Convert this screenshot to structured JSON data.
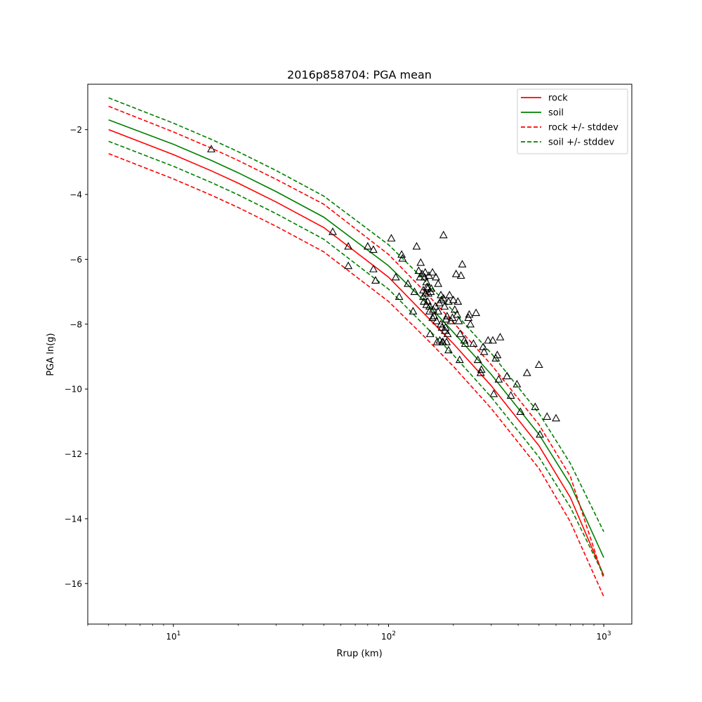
{
  "chart_data": {
    "type": "line",
    "title": "2016p858704: PGA mean",
    "xlabel": "Rrup (km)",
    "ylabel": "PGA ln(g)",
    "x_scale": "log",
    "xlim": [
      4.0,
      1350
    ],
    "ylim": [
      -17.25,
      -0.6
    ],
    "xticks": [
      {
        "value": 10,
        "base": "10",
        "exp": "1"
      },
      {
        "value": 100,
        "base": "10",
        "exp": "2"
      },
      {
        "value": 1000,
        "base": "10",
        "exp": "3"
      }
    ],
    "yticks": [
      {
        "value": -2,
        "label": "−2"
      },
      {
        "value": -4,
        "label": "−4"
      },
      {
        "value": -6,
        "label": "−6"
      },
      {
        "value": -8,
        "label": "−8"
      },
      {
        "value": -10,
        "label": "−10"
      },
      {
        "value": -12,
        "label": "−12"
      },
      {
        "value": -14,
        "label": "−14"
      },
      {
        "value": -16,
        "label": "−16"
      }
    ],
    "grid": false,
    "legend_position": "top-right",
    "legend": [
      {
        "label": "rock",
        "color": "#ff0000",
        "dashed": false
      },
      {
        "label": "soil",
        "color": "#008000",
        "dashed": false
      },
      {
        "label": "rock +/- stddev",
        "color": "#ff0000",
        "dashed": true
      },
      {
        "label": "soil +/- stddev",
        "color": "#008000",
        "dashed": true
      }
    ],
    "curve_x": [
      5,
      10,
      15,
      20,
      30,
      50,
      100,
      150,
      200,
      300,
      500,
      700,
      1000
    ],
    "series": [
      {
        "name": "rock",
        "color": "#ff0000",
        "dashed": false,
        "values": [
          -2.0,
          -2.77,
          -3.27,
          -3.65,
          -4.23,
          -5.02,
          -6.55,
          -7.75,
          -8.6,
          -9.9,
          -11.75,
          -13.35,
          -15.75
        ]
      },
      {
        "name": "soil",
        "color": "#008000",
        "dashed": false,
        "values": [
          -1.7,
          -2.45,
          -2.95,
          -3.33,
          -3.91,
          -4.7,
          -6.2,
          -7.35,
          -8.25,
          -9.55,
          -11.4,
          -12.95,
          -15.2
        ]
      },
      {
        "name": "rock +/- stddev",
        "color": "#ff0000",
        "dashed": true,
        "values": [
          -1.28,
          -2.07,
          -2.57,
          -2.95,
          -3.53,
          -4.3,
          -5.85,
          -7.05,
          -7.95,
          -9.25,
          -11.1,
          -12.7,
          -15.85
        ]
      },
      {
        "name": "rock +/- stddev",
        "color": "#ff0000",
        "dashed": true,
        "values": [
          -2.74,
          -3.52,
          -4.02,
          -4.4,
          -4.98,
          -5.77,
          -7.3,
          -8.45,
          -9.3,
          -10.6,
          -12.45,
          -14.1,
          -16.4
        ]
      },
      {
        "name": "soil +/- stddev",
        "color": "#008000",
        "dashed": true,
        "values": [
          -1.02,
          -1.8,
          -2.3,
          -2.68,
          -3.26,
          -4.05,
          -5.55,
          -6.7,
          -7.6,
          -8.9,
          -10.75,
          -12.3,
          -14.4
        ]
      },
      {
        "name": "soil +/- stddev",
        "color": "#008000",
        "dashed": true,
        "values": [
          -2.36,
          -3.13,
          -3.63,
          -4.01,
          -4.59,
          -5.38,
          -6.92,
          -8.1,
          -8.95,
          -10.25,
          -12.1,
          -13.65,
          -15.75
        ]
      }
    ],
    "observations": {
      "marker": "open-triangle",
      "color": "#000000",
      "points": [
        [
          15,
          -2.6
        ],
        [
          55,
          -5.15
        ],
        [
          65,
          -5.6
        ],
        [
          65,
          -6.2
        ],
        [
          80,
          -5.6
        ],
        [
          85,
          -5.7
        ],
        [
          85,
          -6.3
        ],
        [
          87,
          -6.65
        ],
        [
          103,
          -5.35
        ],
        [
          108,
          -6.55
        ],
        [
          112,
          -7.15
        ],
        [
          115,
          -5.85
        ],
        [
          116,
          -5.97
        ],
        [
          123,
          -6.75
        ],
        [
          130,
          -7.6
        ],
        [
          132,
          -7.0
        ],
        [
          135,
          -5.6
        ],
        [
          138,
          -6.35
        ],
        [
          140,
          -6.55
        ],
        [
          141,
          -6.1
        ],
        [
          143,
          -6.45
        ],
        [
          145,
          -6.95
        ],
        [
          145,
          -7.15
        ],
        [
          146,
          -7.3
        ],
        [
          147,
          -6.55
        ],
        [
          148,
          -6.4
        ],
        [
          149,
          -7.05
        ],
        [
          150,
          -7.4
        ],
        [
          150,
          -6.7
        ],
        [
          151,
          -6.85
        ],
        [
          152,
          -7.3
        ],
        [
          152,
          -6.9
        ],
        [
          153,
          -7.05
        ],
        [
          154,
          -6.5
        ],
        [
          155,
          -7.6
        ],
        [
          155,
          -7.45
        ],
        [
          156,
          -8.3
        ],
        [
          157,
          -7.0
        ],
        [
          158,
          -6.9
        ],
        [
          160,
          -7.8
        ],
        [
          160,
          -6.4
        ],
        [
          161,
          -7.55
        ],
        [
          163,
          -7.75
        ],
        [
          165,
          -7.45
        ],
        [
          166,
          -6.55
        ],
        [
          167,
          -7.9
        ],
        [
          168,
          -8.55
        ],
        [
          170,
          -6.75
        ],
        [
          170,
          -7.6
        ],
        [
          172,
          -7.35
        ],
        [
          173,
          -8.5
        ],
        [
          175,
          -7.1
        ],
        [
          175,
          -8.0
        ],
        [
          176,
          -7.25
        ],
        [
          177,
          -8.1
        ],
        [
          178,
          -8.55
        ],
        [
          179,
          -8.55
        ],
        [
          180,
          -7.2
        ],
        [
          180,
          -5.25
        ],
        [
          182,
          -7.45
        ],
        [
          183,
          -8.2
        ],
        [
          184,
          -8.1
        ],
        [
          185,
          -7.85
        ],
        [
          186,
          -8.55
        ],
        [
          187,
          -7.75
        ],
        [
          188,
          -8.3
        ],
        [
          190,
          -7.3
        ],
        [
          190,
          -8.8
        ],
        [
          192,
          -7.1
        ],
        [
          195,
          -7.9
        ],
        [
          198,
          -7.8
        ],
        [
          200,
          -7.25
        ],
        [
          203,
          -7.55
        ],
        [
          206,
          -6.45
        ],
        [
          208,
          -7.7
        ],
        [
          210,
          -7.3
        ],
        [
          212,
          -7.9
        ],
        [
          214,
          -9.1
        ],
        [
          215,
          -8.3
        ],
        [
          217,
          -6.5
        ],
        [
          220,
          -6.15
        ],
        [
          225,
          -8.5
        ],
        [
          227,
          -8.6
        ],
        [
          235,
          -7.8
        ],
        [
          237,
          -7.7
        ],
        [
          240,
          -8.0
        ],
        [
          248,
          -8.6
        ],
        [
          255,
          -7.65
        ],
        [
          260,
          -9.1
        ],
        [
          268,
          -9.5
        ],
        [
          270,
          -9.4
        ],
        [
          275,
          -8.7
        ],
        [
          278,
          -8.85
        ],
        [
          290,
          -8.5
        ],
        [
          305,
          -8.5
        ],
        [
          308,
          -10.15
        ],
        [
          315,
          -9.05
        ],
        [
          320,
          -8.95
        ],
        [
          325,
          -9.7
        ],
        [
          330,
          -8.4
        ],
        [
          355,
          -9.6
        ],
        [
          370,
          -10.2
        ],
        [
          395,
          -9.85
        ],
        [
          410,
          -10.7
        ],
        [
          440,
          -9.5
        ],
        [
          480,
          -10.55
        ],
        [
          500,
          -9.25
        ],
        [
          505,
          -11.4
        ],
        [
          545,
          -10.85
        ],
        [
          600,
          -10.9
        ]
      ]
    }
  }
}
